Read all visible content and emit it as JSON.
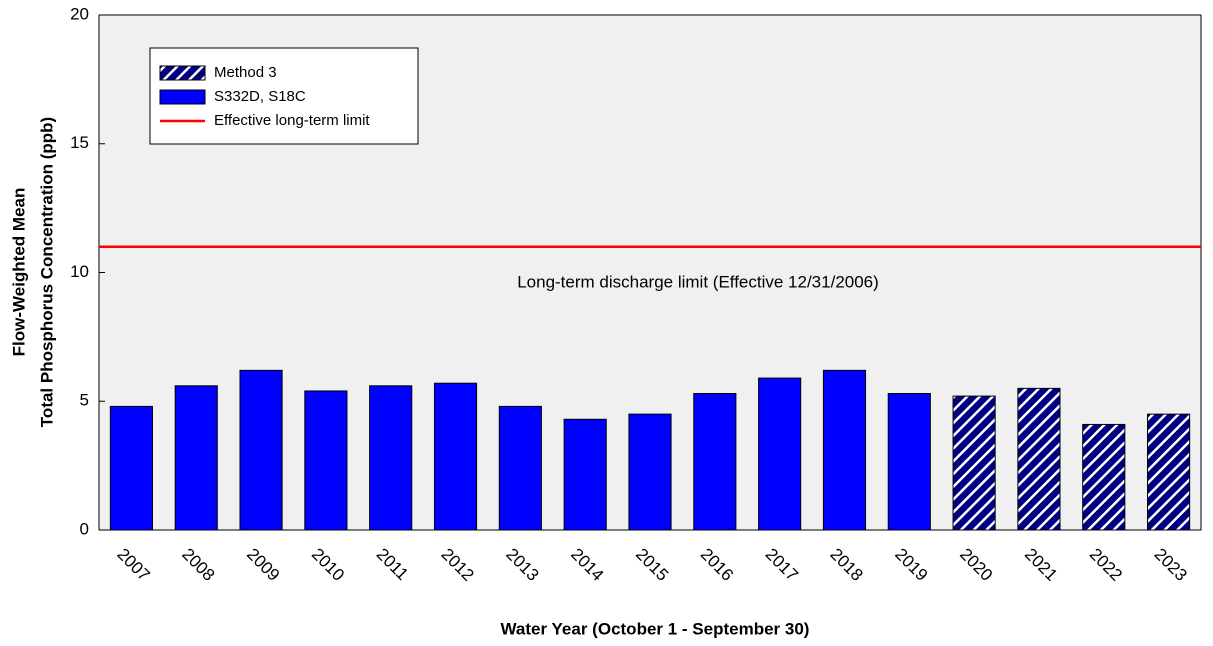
{
  "chart_data": {
    "type": "bar",
    "ylabel": [
      "Flow-Weighted Mean",
      "Total Phosphorus Concentration (ppb)"
    ],
    "xlabel": "Water Year (October 1 - September 30)",
    "categories": [
      "2007",
      "2008",
      "2009",
      "2010",
      "2011",
      "2012",
      "2013",
      "2014",
      "2015",
      "2016",
      "2017",
      "2018",
      "2019",
      "2020",
      "2021",
      "2022",
      "2023"
    ],
    "series": [
      {
        "name": "Method 3",
        "color": "#000080",
        "hatch": true,
        "values": [
          null,
          null,
          null,
          null,
          null,
          null,
          null,
          null,
          null,
          null,
          null,
          null,
          null,
          5.2,
          5.5,
          4.1,
          4.5
        ]
      },
      {
        "name": "S332D, S18C",
        "color": "#0000ff",
        "hatch": false,
        "values": [
          4.8,
          5.6,
          6.2,
          5.4,
          5.6,
          5.7,
          4.8,
          4.3,
          4.5,
          5.3,
          5.9,
          6.2,
          5.3,
          null,
          null,
          null,
          null
        ]
      }
    ],
    "reference_line": {
      "name": "Effective long-term limit",
      "value": 11,
      "color": "#ff0000"
    },
    "annotation": "Long-term discharge limit (Effective 12/31/2006)",
    "ylim": [
      0,
      20
    ],
    "yticks": [
      0,
      5,
      10,
      15,
      20
    ]
  }
}
